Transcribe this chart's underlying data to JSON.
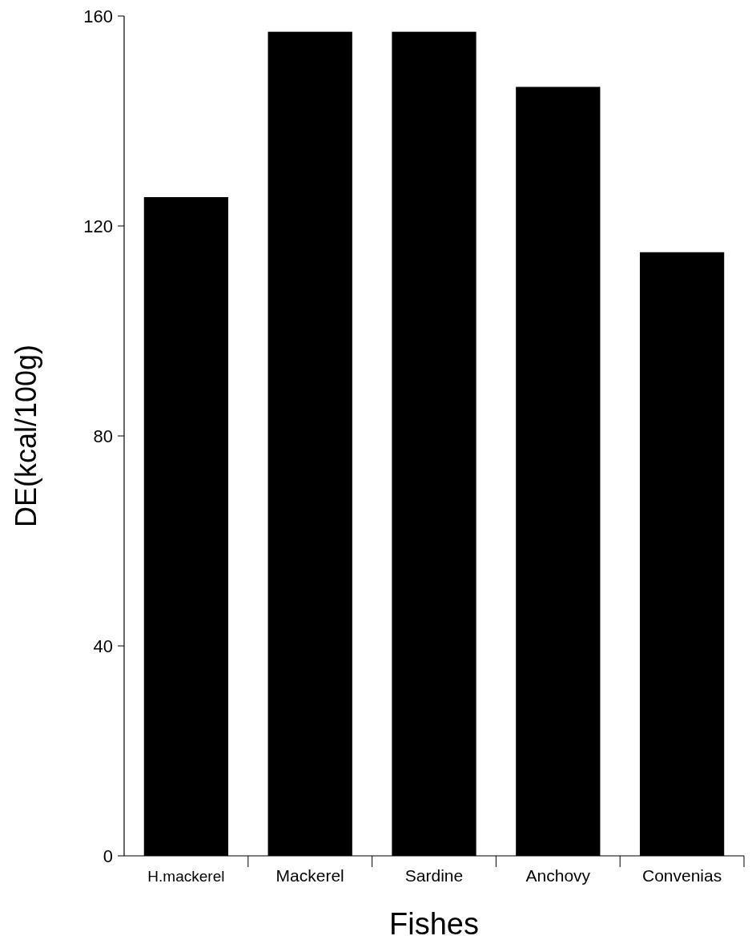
{
  "chart_data": {
    "type": "bar",
    "xlabel": "Fishes",
    "ylabel": "DE(kcal/100g)",
    "categories": [
      "H.mackerel",
      "Mackerel",
      "Sardine",
      "Anchovy",
      "Convenias"
    ],
    "values": [
      125.5,
      157,
      157,
      146.5,
      115
    ],
    "color": "#000000",
    "ylim": [
      0,
      160
    ],
    "yticks": [
      0,
      40,
      80,
      120,
      160
    ],
    "grid": false
  }
}
